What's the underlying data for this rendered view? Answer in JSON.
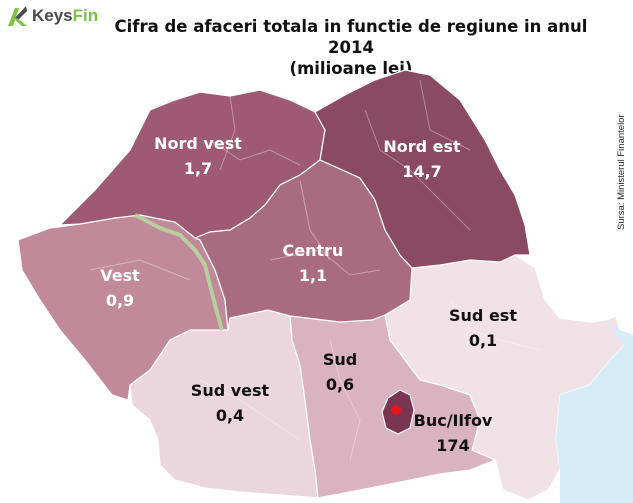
{
  "header": {
    "logo_text_main": "Keys",
    "logo_text_accent": "Fin",
    "title_line1": "Cifra de afaceri totala in functie de regiune in anul 2014",
    "title_line2": "(milioane lei)"
  },
  "source": "Sursa: Ministerul Finantelor",
  "colors": {
    "nord_est": "#8a4a62",
    "nord_vest": "#9e5a72",
    "centru": "#a86b80",
    "vest": "#c08a9a",
    "sud": "#d9b3bf",
    "sud_vest": "#ecd6dd",
    "sud_est": "#f1e2e7",
    "buc_ilfov": "#7a3650",
    "marker": "#e8141e"
  },
  "regions": [
    {
      "id": "nord-vest",
      "name": "Nord vest",
      "value": "1,7"
    },
    {
      "id": "nord-est",
      "name": "Nord est",
      "value": "14,7"
    },
    {
      "id": "centru",
      "name": "Centru",
      "value": "1,1"
    },
    {
      "id": "vest",
      "name": "Vest",
      "value": "0,9"
    },
    {
      "id": "sud-est",
      "name": "Sud est",
      "value": "0,1"
    },
    {
      "id": "sud",
      "name": "Sud",
      "value": "0,6"
    },
    {
      "id": "sud-vest",
      "name": "Sud vest",
      "value": "0,4"
    },
    {
      "id": "buc-ilfov",
      "name": "Buc/Ilfov",
      "value": "174"
    }
  ]
}
